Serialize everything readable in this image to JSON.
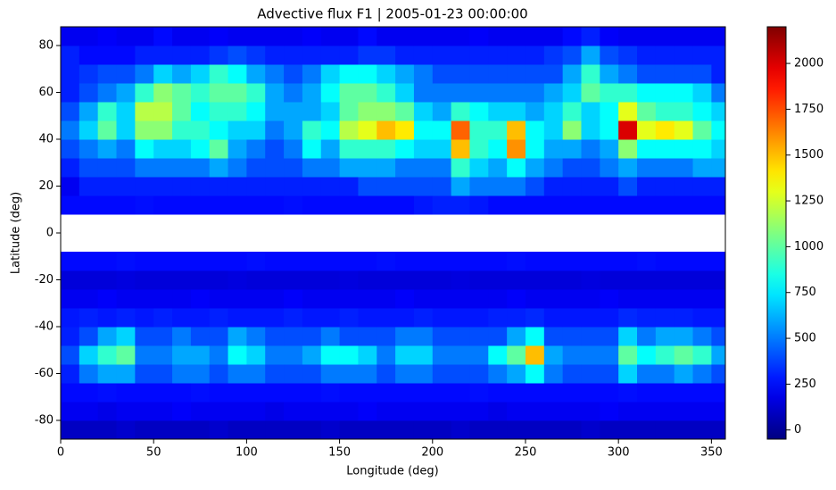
{
  "chart_data": {
    "type": "heatmap",
    "title": "Advective flux F1 | 2005-01-23 00:00:00",
    "xlabel": "Longitude (deg)",
    "ylabel": "Latitude (deg)",
    "colormap": "jet",
    "xlim": [
      0,
      357.5
    ],
    "ylim": [
      -88,
      88
    ],
    "xticks": [
      0,
      50,
      100,
      150,
      200,
      250,
      300,
      350
    ],
    "yticks": [
      -80,
      -60,
      -40,
      -20,
      0,
      20,
      40,
      60,
      80
    ],
    "clim": [
      -50,
      2200
    ],
    "cticks": [
      0,
      250,
      500,
      750,
      1000,
      1250,
      1500,
      1750,
      2000
    ],
    "xbins": [
      0,
      10,
      20,
      30,
      40,
      50,
      60,
      70,
      80,
      90,
      100,
      110,
      120,
      130,
      140,
      150,
      160,
      170,
      180,
      190,
      200,
      210,
      220,
      230,
      240,
      250,
      260,
      270,
      280,
      290,
      300,
      310,
      320,
      330,
      340,
      350,
      357.5
    ],
    "ybins": [
      -88,
      -80,
      -72,
      -64,
      -56,
      -48,
      -40,
      -32,
      -24,
      -16,
      -8,
      0,
      8,
      16,
      24,
      32,
      40,
      48,
      56,
      64,
      72,
      80,
      88
    ],
    "values": [
      [
        100,
        100,
        100,
        120,
        100,
        100,
        100,
        100,
        120,
        100,
        100,
        100,
        100,
        100,
        120,
        100,
        100,
        100,
        100,
        100,
        100,
        120,
        100,
        100,
        100,
        100,
        100,
        100,
        120,
        100,
        100,
        100,
        100,
        100,
        100,
        100
      ],
      [
        200,
        200,
        180,
        200,
        200,
        200,
        220,
        200,
        200,
        200,
        200,
        180,
        200,
        200,
        200,
        200,
        220,
        200,
        200,
        200,
        200,
        200,
        200,
        180,
        200,
        200,
        200,
        200,
        200,
        220,
        200,
        200,
        200,
        200,
        200,
        200
      ],
      [
        250,
        250,
        260,
        250,
        250,
        250,
        250,
        260,
        250,
        250,
        250,
        250,
        250,
        250,
        260,
        250,
        250,
        250,
        250,
        250,
        250,
        250,
        260,
        250,
        250,
        250,
        250,
        250,
        250,
        250,
        260,
        250,
        250,
        250,
        250,
        250
      ],
      [
        300,
        500,
        600,
        600,
        400,
        400,
        500,
        500,
        400,
        500,
        500,
        400,
        400,
        400,
        500,
        500,
        500,
        400,
        500,
        500,
        400,
        400,
        400,
        500,
        600,
        800,
        500,
        400,
        400,
        400,
        700,
        500,
        500,
        600,
        500,
        400
      ],
      [
        400,
        700,
        900,
        1000,
        500,
        500,
        600,
        600,
        500,
        800,
        700,
        500,
        500,
        600,
        800,
        800,
        700,
        500,
        700,
        700,
        500,
        500,
        500,
        800,
        1000,
        1500,
        600,
        500,
        500,
        500,
        1000,
        800,
        900,
        1000,
        900,
        600
      ],
      [
        300,
        400,
        600,
        700,
        400,
        400,
        500,
        400,
        400,
        600,
        500,
        400,
        400,
        400,
        500,
        400,
        400,
        400,
        500,
        500,
        400,
        400,
        400,
        400,
        600,
        800,
        400,
        400,
        400,
        400,
        700,
        500,
        600,
        600,
        500,
        400
      ],
      [
        280,
        300,
        280,
        300,
        280,
        300,
        280,
        280,
        300,
        280,
        280,
        280,
        300,
        280,
        280,
        300,
        280,
        280,
        280,
        300,
        280,
        280,
        280,
        300,
        300,
        320,
        280,
        280,
        280,
        280,
        320,
        300,
        300,
        300,
        280,
        280
      ],
      [
        200,
        200,
        220,
        200,
        200,
        200,
        200,
        220,
        200,
        200,
        200,
        200,
        220,
        200,
        200,
        200,
        200,
        200,
        220,
        200,
        200,
        200,
        200,
        200,
        220,
        200,
        200,
        200,
        200,
        220,
        200,
        200,
        200,
        200,
        200,
        200
      ],
      [
        150,
        150,
        150,
        160,
        150,
        150,
        150,
        150,
        150,
        160,
        150,
        150,
        150,
        150,
        150,
        160,
        150,
        150,
        150,
        150,
        150,
        160,
        150,
        150,
        150,
        150,
        150,
        150,
        160,
        150,
        150,
        150,
        150,
        150,
        150,
        150
      ],
      [
        250,
        250,
        250,
        260,
        250,
        250,
        250,
        250,
        250,
        250,
        260,
        250,
        250,
        250,
        250,
        250,
        250,
        260,
        250,
        250,
        250,
        250,
        250,
        250,
        260,
        250,
        250,
        250,
        250,
        250,
        250,
        260,
        250,
        250,
        250,
        250
      ],
      null,
      null,
      [
        250,
        250,
        250,
        250,
        260,
        250,
        250,
        250,
        250,
        250,
        250,
        250,
        260,
        250,
        250,
        250,
        250,
        250,
        250,
        280,
        300,
        300,
        280,
        250,
        250,
        250,
        250,
        250,
        250,
        250,
        250,
        250,
        250,
        250,
        250,
        250
      ],
      [
        200,
        300,
        300,
        300,
        300,
        300,
        300,
        300,
        300,
        300,
        300,
        300,
        300,
        300,
        300,
        300,
        400,
        400,
        400,
        400,
        400,
        600,
        500,
        500,
        500,
        400,
        300,
        300,
        300,
        300,
        400,
        300,
        300,
        300,
        300,
        300
      ],
      [
        300,
        400,
        400,
        400,
        500,
        500,
        500,
        500,
        600,
        500,
        400,
        400,
        400,
        500,
        500,
        600,
        600,
        600,
        500,
        500,
        500,
        900,
        700,
        600,
        800,
        600,
        500,
        400,
        400,
        500,
        600,
        500,
        500,
        500,
        600,
        600
      ],
      [
        400,
        500,
        600,
        500,
        800,
        700,
        700,
        800,
        1000,
        600,
        500,
        400,
        500,
        800,
        600,
        900,
        900,
        900,
        800,
        700,
        700,
        1500,
        900,
        800,
        1600,
        800,
        600,
        600,
        500,
        600,
        1100,
        800,
        800,
        800,
        800,
        700
      ],
      [
        500,
        700,
        1000,
        700,
        1100,
        1100,
        900,
        900,
        800,
        700,
        700,
        500,
        600,
        900,
        800,
        1200,
        1300,
        1500,
        1400,
        800,
        800,
        1700,
        900,
        900,
        1500,
        800,
        700,
        1100,
        700,
        800,
        2000,
        1300,
        1400,
        1300,
        1000,
        800
      ],
      [
        400,
        600,
        900,
        700,
        1200,
        1200,
        1000,
        800,
        900,
        900,
        800,
        600,
        600,
        600,
        700,
        1000,
        1100,
        1100,
        1000,
        700,
        600,
        900,
        800,
        700,
        700,
        600,
        700,
        900,
        700,
        800,
        1300,
        1000,
        900,
        900,
        800,
        700
      ],
      [
        300,
        400,
        500,
        600,
        900,
        1100,
        1000,
        900,
        1000,
        1000,
        900,
        600,
        500,
        600,
        800,
        1000,
        1000,
        900,
        700,
        500,
        500,
        500,
        500,
        500,
        500,
        500,
        600,
        700,
        1000,
        900,
        900,
        800,
        800,
        800,
        700,
        500
      ],
      [
        300,
        350,
        400,
        400,
        500,
        700,
        600,
        700,
        900,
        800,
        600,
        500,
        400,
        500,
        700,
        800,
        800,
        700,
        600,
        500,
        400,
        400,
        400,
        400,
        400,
        400,
        400,
        600,
        900,
        600,
        500,
        400,
        400,
        400,
        400,
        300
      ],
      [
        300,
        250,
        250,
        250,
        300,
        300,
        300,
        300,
        350,
        400,
        350,
        300,
        300,
        300,
        300,
        300,
        350,
        350,
        300,
        300,
        300,
        300,
        300,
        300,
        300,
        300,
        350,
        400,
        600,
        400,
        350,
        300,
        300,
        300,
        300,
        300
      ],
      [
        200,
        200,
        220,
        200,
        200,
        250,
        200,
        200,
        220,
        200,
        200,
        200,
        200,
        220,
        200,
        200,
        250,
        200,
        200,
        200,
        200,
        200,
        220,
        200,
        200,
        200,
        200,
        250,
        300,
        220,
        200,
        200,
        200,
        200,
        200,
        200
      ]
    ]
  }
}
